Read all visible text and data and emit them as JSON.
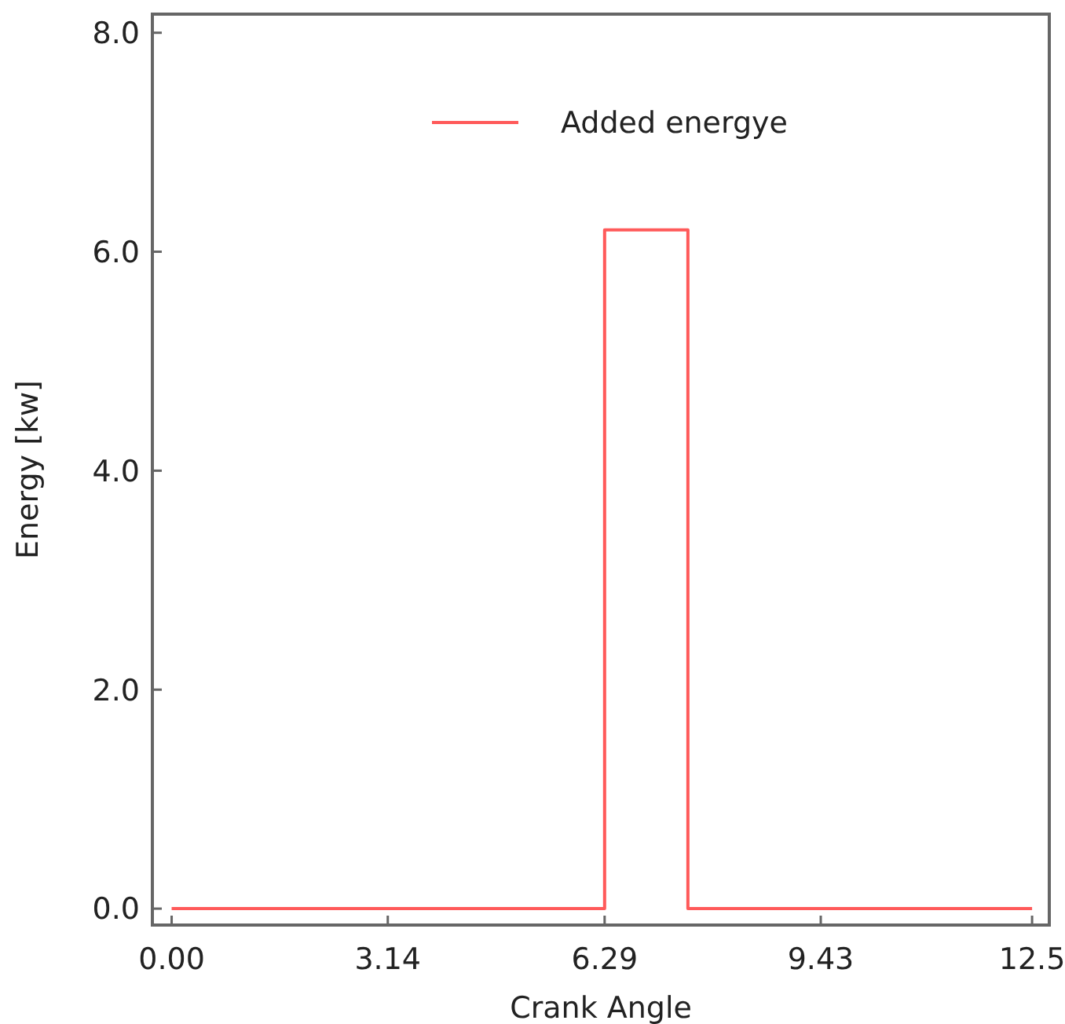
{
  "chart_data": {
    "type": "step",
    "xlabel": "Crank Angle",
    "ylabel": "Energy [kw]",
    "x": [
      0,
      6.29,
      7.5,
      12.5
    ],
    "series": [
      {
        "name": "Added energye",
        "color": "#ff5a5a",
        "values": [
          0,
          6.2,
          0,
          0
        ]
      }
    ],
    "xlim": [
      -0.28,
      12.75
    ],
    "xticks": [
      {
        "value": 0,
        "label": "0.00"
      },
      3.14,
      6.29,
      9.43,
      12.5
    ],
    "ylim": [
      -0.15,
      8.17
    ],
    "yticks": [
      {
        "value": 0,
        "label": "0.0"
      },
      {
        "value": 2,
        "label": "2.0"
      },
      {
        "value": 4,
        "label": "4.0"
      },
      {
        "value": 6,
        "label": "6.0"
      },
      {
        "value": 8,
        "label": "8.0"
      }
    ],
    "grid": false,
    "legend": "top"
  }
}
